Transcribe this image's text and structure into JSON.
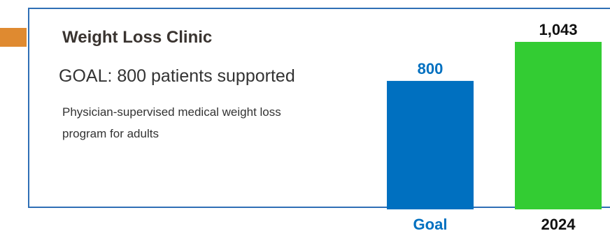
{
  "title": "Weight Loss Clinic",
  "goal_text": "GOAL: 800 patients supported",
  "description": "Physician-supervised medical weight loss program for adults",
  "colors": {
    "accent": "#DF8A30",
    "frame": "#2F6FB5",
    "goal_bar": "#0070C0",
    "actual_bar": "#33CC33"
  },
  "chart_data": {
    "type": "bar",
    "categories": [
      "Goal",
      "2024"
    ],
    "values": [
      800,
      1043
    ],
    "data_labels": [
      "800",
      "1,043"
    ],
    "title": "",
    "xlabel": "",
    "ylabel": "",
    "ylim": [
      0,
      1043
    ],
    "grid": false
  }
}
